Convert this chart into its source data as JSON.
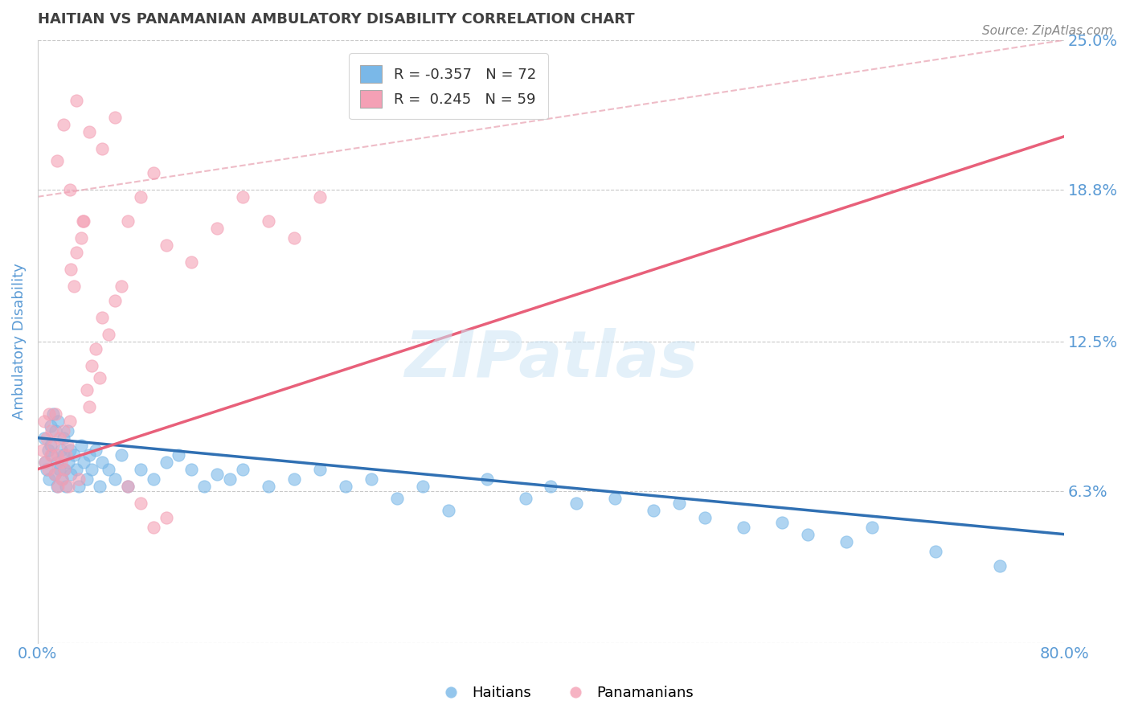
{
  "title": "HAITIAN VS PANAMANIAN AMBULATORY DISABILITY CORRELATION CHART",
  "source": "Source: ZipAtlas.com",
  "ylabel": "Ambulatory Disability",
  "xlim": [
    0.0,
    0.8
  ],
  "ylim": [
    0.0,
    0.25
  ],
  "yticks": [
    0.0,
    0.063,
    0.125,
    0.188,
    0.25
  ],
  "ytick_labels": [
    "",
    "6.3%",
    "12.5%",
    "18.8%",
    "25.0%"
  ],
  "xticks": [
    0.0,
    0.8
  ],
  "xtick_labels": [
    "0.0%",
    "80.0%"
  ],
  "haitian_color": "#7ab8e8",
  "panamanian_color": "#f4a0b5",
  "haitian_line_color": "#3070b3",
  "panamanian_line_color": "#e8607a",
  "dashed_line_color": "#e8a0b0",
  "R_haitian": -0.357,
  "N_haitian": 72,
  "R_panamanian": 0.245,
  "N_panamanian": 59,
  "title_color": "#404040",
  "axis_label_color": "#5b9bd5",
  "tick_label_color": "#5b9bd5",
  "background_color": "#ffffff",
  "grid_color": "#c8c8c8",
  "haitian_trend": [
    0.0,
    0.8,
    0.085,
    0.045
  ],
  "panamanian_trend": [
    0.0,
    0.8,
    0.072,
    0.21
  ],
  "dashed_trend": [
    0.0,
    0.8,
    0.185,
    0.25
  ],
  "haitian_scatter_x": [
    0.005,
    0.006,
    0.007,
    0.008,
    0.009,
    0.01,
    0.01,
    0.011,
    0.012,
    0.013,
    0.014,
    0.015,
    0.015,
    0.016,
    0.017,
    0.018,
    0.019,
    0.02,
    0.02,
    0.021,
    0.022,
    0.023,
    0.024,
    0.025,
    0.026,
    0.028,
    0.03,
    0.032,
    0.034,
    0.036,
    0.038,
    0.04,
    0.042,
    0.045,
    0.048,
    0.05,
    0.055,
    0.06,
    0.065,
    0.07,
    0.08,
    0.09,
    0.1,
    0.11,
    0.12,
    0.13,
    0.14,
    0.15,
    0.16,
    0.18,
    0.2,
    0.22,
    0.24,
    0.26,
    0.28,
    0.3,
    0.32,
    0.35,
    0.38,
    0.4,
    0.42,
    0.45,
    0.48,
    0.5,
    0.52,
    0.55,
    0.58,
    0.6,
    0.63,
    0.65,
    0.7,
    0.75
  ],
  "haitian_scatter_y": [
    0.085,
    0.075,
    0.072,
    0.08,
    0.068,
    0.09,
    0.082,
    0.078,
    0.095,
    0.07,
    0.088,
    0.075,
    0.065,
    0.092,
    0.072,
    0.08,
    0.068,
    0.085,
    0.078,
    0.072,
    0.065,
    0.088,
    0.075,
    0.08,
    0.07,
    0.078,
    0.072,
    0.065,
    0.082,
    0.075,
    0.068,
    0.078,
    0.072,
    0.08,
    0.065,
    0.075,
    0.072,
    0.068,
    0.078,
    0.065,
    0.072,
    0.068,
    0.075,
    0.078,
    0.072,
    0.065,
    0.07,
    0.068,
    0.072,
    0.065,
    0.068,
    0.072,
    0.065,
    0.068,
    0.06,
    0.065,
    0.055,
    0.068,
    0.06,
    0.065,
    0.058,
    0.06,
    0.055,
    0.058,
    0.052,
    0.048,
    0.05,
    0.045,
    0.042,
    0.048,
    0.038,
    0.032
  ],
  "panamanian_scatter_x": [
    0.004,
    0.005,
    0.006,
    0.007,
    0.008,
    0.009,
    0.01,
    0.011,
    0.012,
    0.013,
    0.014,
    0.015,
    0.016,
    0.017,
    0.018,
    0.019,
    0.02,
    0.021,
    0.022,
    0.023,
    0.024,
    0.025,
    0.026,
    0.028,
    0.03,
    0.032,
    0.034,
    0.036,
    0.038,
    0.04,
    0.042,
    0.045,
    0.048,
    0.05,
    0.055,
    0.06,
    0.065,
    0.07,
    0.08,
    0.09,
    0.1,
    0.12,
    0.14,
    0.16,
    0.18,
    0.2,
    0.22,
    0.025,
    0.035,
    0.015,
    0.02,
    0.03,
    0.04,
    0.05,
    0.06,
    0.07,
    0.08,
    0.09,
    0.1
  ],
  "panamanian_scatter_y": [
    0.08,
    0.092,
    0.075,
    0.085,
    0.072,
    0.095,
    0.078,
    0.088,
    0.082,
    0.07,
    0.095,
    0.078,
    0.065,
    0.085,
    0.075,
    0.068,
    0.088,
    0.072,
    0.078,
    0.082,
    0.065,
    0.092,
    0.155,
    0.148,
    0.162,
    0.068,
    0.168,
    0.175,
    0.105,
    0.098,
    0.115,
    0.122,
    0.11,
    0.135,
    0.128,
    0.142,
    0.148,
    0.065,
    0.058,
    0.048,
    0.052,
    0.158,
    0.172,
    0.185,
    0.175,
    0.168,
    0.185,
    0.188,
    0.175,
    0.2,
    0.215,
    0.225,
    0.212,
    0.205,
    0.218,
    0.175,
    0.185,
    0.195,
    0.165
  ]
}
